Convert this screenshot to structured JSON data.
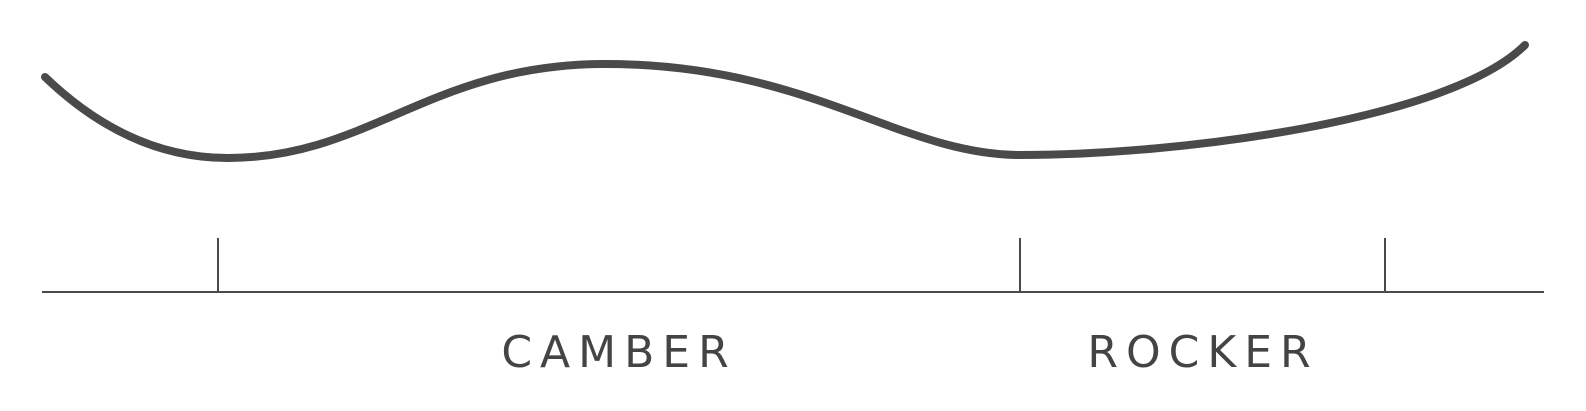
{
  "diagram": {
    "labels": {
      "camber": "CAMBER",
      "rocker": "ROCKER"
    },
    "colors": {
      "curve": "#4a4a4a",
      "axis": "#4a4a4a",
      "text": "#444444",
      "background": "#ffffff"
    }
  }
}
